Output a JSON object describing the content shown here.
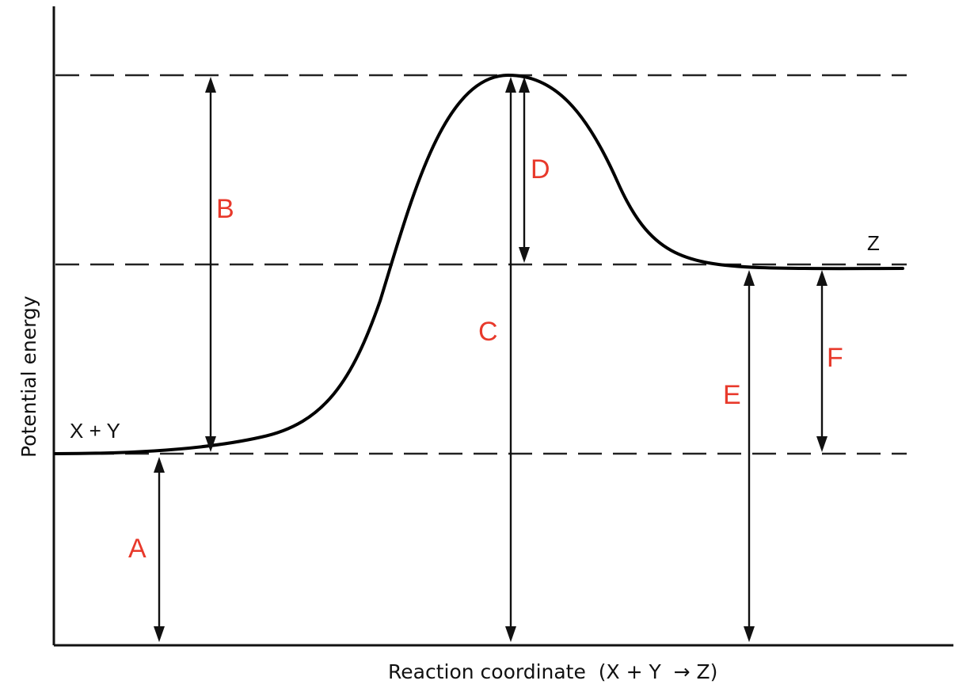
{
  "labels": {
    "reactants": "X + Y",
    "product": "Z",
    "x_axis": "Reaction coordinate  (X + Y  → Z)",
    "y_axis": "Potential energy"
  },
  "arrows": [
    {
      "key": "A",
      "label": "A"
    },
    {
      "key": "B",
      "label": "B"
    },
    {
      "key": "C",
      "label": "C"
    },
    {
      "key": "D",
      "label": "D"
    },
    {
      "key": "E",
      "label": "E"
    },
    {
      "key": "F",
      "label": "F"
    }
  ],
  "colors": {
    "arrow_label": "#e8392b",
    "line": "#111111",
    "background": "#ffffff"
  }
}
